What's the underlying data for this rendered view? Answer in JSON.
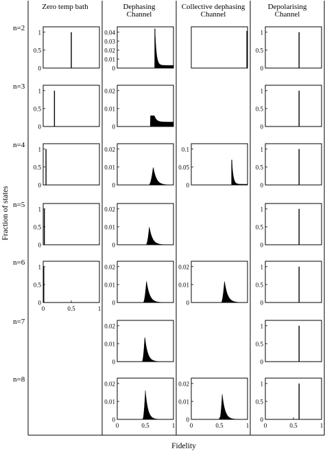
{
  "figure": {
    "xlabel": "Fidelity",
    "ylabel": "Fraction of states"
  },
  "columns": [
    {
      "lines": [
        "Zero temp bath"
      ]
    },
    {
      "lines": [
        "Dephasing",
        "Channel"
      ]
    },
    {
      "lines": [
        "Collective dephasing",
        "Channel"
      ]
    },
    {
      "lines": [
        "Depolarising",
        "Channel"
      ]
    }
  ],
  "rows": [
    "n=2",
    "n=3",
    "n=4",
    "n=5",
    "n=6",
    "n=7",
    "n=8"
  ],
  "chart_data": [
    {
      "row": "n=2",
      "col": 0,
      "type": "histogram",
      "shape": "spike",
      "x": 0.5,
      "y": 1,
      "yticks": [
        "0",
        "0.5",
        "1"
      ],
      "ylim": [
        0,
        1.15
      ]
    },
    {
      "row": "n=2",
      "col": 1,
      "type": "histogram",
      "shape": "decay",
      "x0": 0.67,
      "peak": 0.044,
      "tail": 0.003,
      "rate": 40,
      "yticks": [
        "0",
        "0.01",
        "0.02",
        "0.03",
        "0.04"
      ],
      "ylim": [
        0,
        0.046
      ]
    },
    {
      "row": "n=2",
      "col": 2,
      "type": "histogram",
      "shape": "spike",
      "x": 0.99,
      "y": 0.9,
      "yticks": [],
      "ylim": [
        0,
        1
      ]
    },
    {
      "row": "n=2",
      "col": 3,
      "type": "histogram",
      "shape": "spike",
      "x": 0.6,
      "y": 1,
      "yticks": [
        "0",
        "0.5",
        "1"
      ],
      "ylim": [
        0,
        1.15
      ]
    },
    {
      "row": "n=3",
      "col": 0,
      "type": "histogram",
      "shape": "spike",
      "x": 0.2,
      "y": 1,
      "yticks": [
        "0",
        "0.5",
        "1"
      ],
      "ylim": [
        0,
        1.15
      ]
    },
    {
      "row": "n=3",
      "col": 1,
      "type": "histogram",
      "shape": "plateau",
      "x0": 0.59,
      "x1": 0.66,
      "peak": 0.006,
      "tail": 0.0025,
      "rate": 25,
      "yticks": [
        "0",
        "0.01",
        "0.02"
      ],
      "ylim": [
        0,
        0.023
      ]
    },
    {
      "row": "n=3",
      "col": 3,
      "type": "histogram",
      "shape": "spike",
      "x": 0.6,
      "y": 1,
      "yticks": [
        "0",
        "0.5",
        "1"
      ],
      "ylim": [
        0,
        1.15
      ]
    },
    {
      "row": "n=4",
      "col": 0,
      "type": "histogram",
      "shape": "spike",
      "x": 0.05,
      "y": 1,
      "yticks": [
        "0",
        "0.5",
        "1"
      ],
      "ylim": [
        0,
        1.15
      ]
    },
    {
      "row": "n=4",
      "col": 1,
      "type": "histogram",
      "shape": "hump",
      "x0": 0.56,
      "xp": 0.64,
      "peak": 0.01,
      "rate": 18,
      "yticks": [
        "0",
        "0.01",
        "0.02"
      ],
      "ylim": [
        0,
        0.023
      ]
    },
    {
      "row": "n=4",
      "col": 2,
      "type": "histogram",
      "shape": "decay",
      "x0": 0.72,
      "peak": 0.07,
      "tail": 0.002,
      "rate": 40,
      "yticks": [
        "0",
        "0.05",
        "0.1"
      ],
      "ylim": [
        0,
        0.115
      ]
    },
    {
      "row": "n=4",
      "col": 3,
      "type": "histogram",
      "shape": "spike",
      "x": 0.6,
      "y": 1,
      "yticks": [
        "0",
        "0.5",
        "1"
      ],
      "ylim": [
        0,
        1.15
      ]
    },
    {
      "row": "n=5",
      "col": 0,
      "type": "histogram",
      "shape": "spike",
      "x": 0.02,
      "y": 1,
      "yticks": [
        "0",
        "0.5",
        "1"
      ],
      "ylim": [
        0,
        1.15
      ]
    },
    {
      "row": "n=5",
      "col": 1,
      "type": "histogram",
      "shape": "hump",
      "x0": 0.51,
      "xp": 0.57,
      "peak": 0.01,
      "rate": 18,
      "yticks": [
        "0",
        "0.01",
        "0.02"
      ],
      "ylim": [
        0,
        0.023
      ]
    },
    {
      "row": "n=5",
      "col": 3,
      "type": "histogram",
      "shape": "spike",
      "x": 0.6,
      "y": 1,
      "yticks": [
        "0",
        "0.5",
        "1"
      ],
      "ylim": [
        0,
        1.15
      ]
    },
    {
      "row": "n=6",
      "col": 0,
      "type": "histogram",
      "shape": "spike",
      "x": 0.01,
      "y": 1,
      "yticks": [
        "0",
        "0.5",
        "1"
      ],
      "xticks": [
        "0",
        "0.5",
        "1"
      ],
      "ylim": [
        0,
        1.15
      ]
    },
    {
      "row": "n=6",
      "col": 1,
      "type": "histogram",
      "shape": "hump",
      "x0": 0.46,
      "xp": 0.52,
      "peak": 0.012,
      "rate": 18,
      "yticks": [
        "0",
        "0.01",
        "0.02"
      ],
      "ylim": [
        0,
        0.023
      ]
    },
    {
      "row": "n=6",
      "col": 2,
      "type": "histogram",
      "shape": "hump",
      "x0": 0.53,
      "xp": 0.59,
      "peak": 0.012,
      "rate": 18,
      "yticks": [
        "0",
        "0.01",
        "0.02"
      ],
      "ylim": [
        0,
        0.023
      ]
    },
    {
      "row": "n=6",
      "col": 3,
      "type": "histogram",
      "shape": "spike",
      "x": 0.6,
      "y": 1,
      "yticks": [
        "0",
        "0.5",
        "1"
      ],
      "ylim": [
        0,
        1.15
      ]
    },
    {
      "row": "n=7",
      "col": 1,
      "type": "histogram",
      "shape": "hump",
      "x0": 0.44,
      "xp": 0.49,
      "peak": 0.014,
      "rate": 20,
      "yticks": [
        "0",
        "0.01",
        "0.02"
      ],
      "ylim": [
        0,
        0.023
      ]
    },
    {
      "row": "n=7",
      "col": 3,
      "type": "histogram",
      "shape": "spike",
      "x": 0.6,
      "y": 1,
      "yticks": [
        "0",
        "0.5",
        "1"
      ],
      "ylim": [
        0,
        1.15
      ]
    },
    {
      "row": "n=8",
      "col": 1,
      "type": "histogram",
      "shape": "hump",
      "x0": 0.45,
      "xp": 0.5,
      "peak": 0.016,
      "rate": 22,
      "yticks": [
        "0",
        "0.01",
        "0.02"
      ],
      "xticks": [
        "0",
        "0.5",
        "1"
      ],
      "ylim": [
        0,
        0.023
      ]
    },
    {
      "row": "n=8",
      "col": 2,
      "type": "histogram",
      "shape": "hump",
      "x0": 0.5,
      "xp": 0.55,
      "peak": 0.014,
      "rate": 20,
      "yticks": [
        "0",
        "0.01",
        "0.02"
      ],
      "xticks": [
        "0",
        "0.5",
        "1"
      ],
      "ylim": [
        0,
        0.023
      ]
    },
    {
      "row": "n=8",
      "col": 3,
      "type": "histogram",
      "shape": "spike",
      "x": 0.6,
      "y": 1,
      "yticks": [
        "0",
        "0.5",
        "1"
      ],
      "xticks": [
        "0",
        "0.5",
        "1"
      ],
      "ylim": [
        0,
        1.15
      ]
    }
  ]
}
